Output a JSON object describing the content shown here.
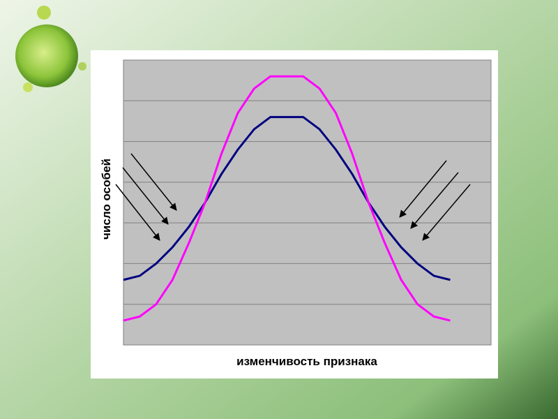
{
  "chart_data": {
    "type": "line",
    "xlabel": "изменчивость признака",
    "ylabel": "число особей",
    "x": [
      0,
      1,
      2,
      3,
      4,
      5,
      6,
      7,
      8,
      9,
      10,
      11,
      12,
      13,
      14,
      15,
      16,
      17,
      18,
      19,
      20
    ],
    "xlim": [
      0,
      22.5
    ],
    "ylim": [
      0,
      7
    ],
    "yticks": [
      0,
      1,
      2,
      3,
      4,
      5,
      6,
      7
    ],
    "grid": true,
    "series": [
      {
        "color": "#000080",
        "values": [
          1.6,
          1.7,
          2.0,
          2.4,
          2.9,
          3.5,
          4.2,
          4.8,
          5.3,
          5.6,
          5.6,
          5.6,
          5.3,
          4.8,
          4.2,
          3.5,
          2.9,
          2.4,
          2.0,
          1.7,
          1.6
        ]
      },
      {
        "color": "#ff00ff",
        "values": [
          0.6,
          0.7,
          1.0,
          1.6,
          2.5,
          3.5,
          4.7,
          5.7,
          6.3,
          6.6,
          6.6,
          6.6,
          6.3,
          5.7,
          4.7,
          3.5,
          2.5,
          1.6,
          1.0,
          0.7,
          0.6
        ]
      }
    ]
  }
}
